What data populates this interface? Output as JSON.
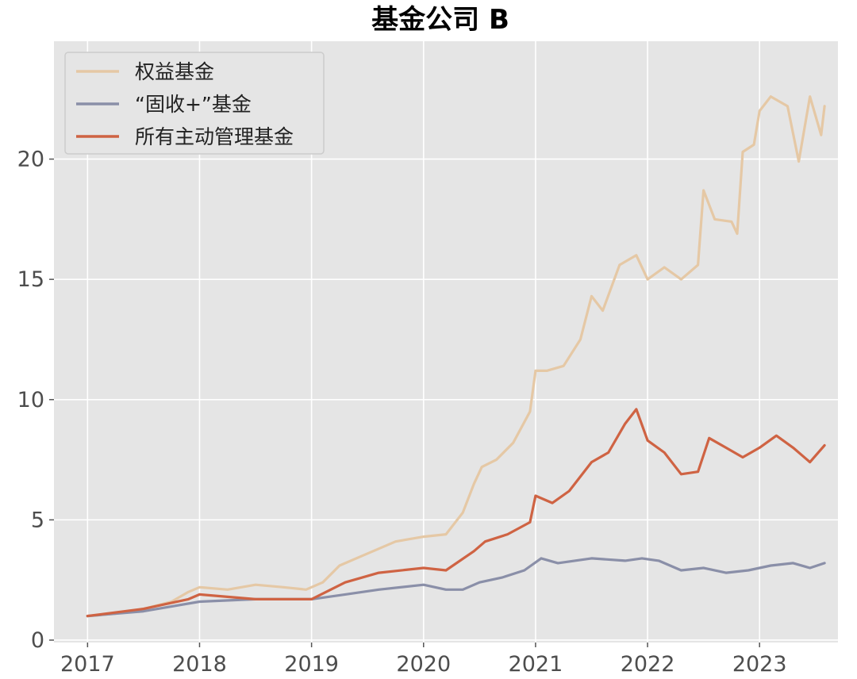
{
  "chart_data": {
    "type": "line",
    "title": "基金公司 B",
    "xlabel": "",
    "ylabel": "",
    "x_ticks": [
      "2017",
      "2018",
      "2019",
      "2020",
      "2021",
      "2022",
      "2023"
    ],
    "y_ticks": [
      "0",
      "5",
      "10",
      "15",
      "20"
    ],
    "xlim": [
      2016.7,
      2023.7
    ],
    "ylim": [
      -0.1,
      24.9
    ],
    "grid": true,
    "legend_position": "top-left",
    "series": [
      {
        "name": "权益基金",
        "color": "#e5c8a5",
        "x": [
          2017.0,
          2017.25,
          2017.5,
          2017.75,
          2017.9,
          2018.0,
          2018.25,
          2018.5,
          2018.75,
          2018.95,
          2019.1,
          2019.25,
          2019.5,
          2019.75,
          2020.0,
          2020.2,
          2020.35,
          2020.45,
          2020.52,
          2020.65,
          2020.8,
          2020.95,
          2021.0,
          2021.1,
          2021.25,
          2021.4,
          2021.5,
          2021.6,
          2021.75,
          2021.9,
          2022.0,
          2022.15,
          2022.3,
          2022.45,
          2022.5,
          2022.6,
          2022.75,
          2022.8,
          2022.85,
          2022.95,
          2023.0,
          2023.1,
          2023.25,
          2023.35,
          2023.45,
          2023.55,
          2023.58
        ],
        "values": [
          1.0,
          1.1,
          1.3,
          1.6,
          2.0,
          2.2,
          2.1,
          2.3,
          2.2,
          2.1,
          2.4,
          3.1,
          3.6,
          4.1,
          4.3,
          4.4,
          5.3,
          6.5,
          7.2,
          7.5,
          8.2,
          9.5,
          11.2,
          11.2,
          11.4,
          12.5,
          14.3,
          13.7,
          15.6,
          16.0,
          15.0,
          15.5,
          15.0,
          15.6,
          18.7,
          17.5,
          17.4,
          16.9,
          20.3,
          20.6,
          22.0,
          22.6,
          22.2,
          19.9,
          22.6,
          21.0,
          22.2
        ]
      },
      {
        "name": "“固收+”基金",
        "color": "#8a8fa8",
        "x": [
          2017.0,
          2017.5,
          2018.0,
          2018.5,
          2019.0,
          2019.3,
          2019.6,
          2020.0,
          2020.2,
          2020.35,
          2020.5,
          2020.7,
          2020.9,
          2021.05,
          2021.2,
          2021.5,
          2021.8,
          2021.95,
          2022.1,
          2022.3,
          2022.5,
          2022.7,
          2022.9,
          2023.1,
          2023.3,
          2023.45,
          2023.58
        ],
        "values": [
          1.0,
          1.2,
          1.6,
          1.7,
          1.7,
          1.9,
          2.1,
          2.3,
          2.1,
          2.1,
          2.4,
          2.6,
          2.9,
          3.4,
          3.2,
          3.4,
          3.3,
          3.4,
          3.3,
          2.9,
          3.0,
          2.8,
          2.9,
          3.1,
          3.2,
          3.0,
          3.2
        ]
      },
      {
        "name": "所有主动管理基金",
        "color": "#cf6343",
        "x": [
          2017.0,
          2017.5,
          2017.9,
          2018.0,
          2018.5,
          2019.0,
          2019.3,
          2019.6,
          2020.0,
          2020.2,
          2020.45,
          2020.55,
          2020.75,
          2020.95,
          2021.0,
          2021.15,
          2021.3,
          2021.5,
          2021.65,
          2021.8,
          2021.9,
          2022.0,
          2022.15,
          2022.3,
          2022.45,
          2022.55,
          2022.7,
          2022.85,
          2023.0,
          2023.15,
          2023.3,
          2023.45,
          2023.58
        ],
        "values": [
          1.0,
          1.3,
          1.7,
          1.9,
          1.7,
          1.7,
          2.4,
          2.8,
          3.0,
          2.9,
          3.7,
          4.1,
          4.4,
          4.9,
          6.0,
          5.7,
          6.2,
          7.4,
          7.8,
          9.0,
          9.6,
          8.3,
          7.8,
          6.9,
          7.0,
          8.4,
          8.0,
          7.6,
          8.0,
          8.5,
          8.0,
          7.4,
          8.1
        ]
      }
    ]
  }
}
